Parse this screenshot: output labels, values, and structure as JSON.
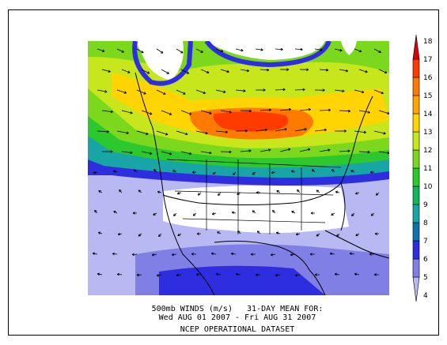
{
  "caption": {
    "line1": "500mb WINDS (m/s)   31-DAY MEAN FOR:",
    "line2": "Wed AUG 01 2007 - Fri AUG 31 2007",
    "line3": "NCEP OPERATIONAL DATASET"
  },
  "colorbar": {
    "levels": [
      "4",
      "5",
      "6",
      "7",
      "8",
      "9",
      "10",
      "11",
      "12",
      "13",
      "14",
      "15",
      "16",
      "17",
      "18"
    ],
    "colors": [
      "#ffffff",
      "#b8b8f2",
      "#7f7fe6",
      "#2e2ee0",
      "#0b74a8",
      "#18a5a5",
      "#12b55a",
      "#2dc82d",
      "#7cd81c",
      "#c8e61c",
      "#ffd400",
      "#ffa500",
      "#ff7a00",
      "#ff3b00",
      "#dc0000"
    ]
  }
}
